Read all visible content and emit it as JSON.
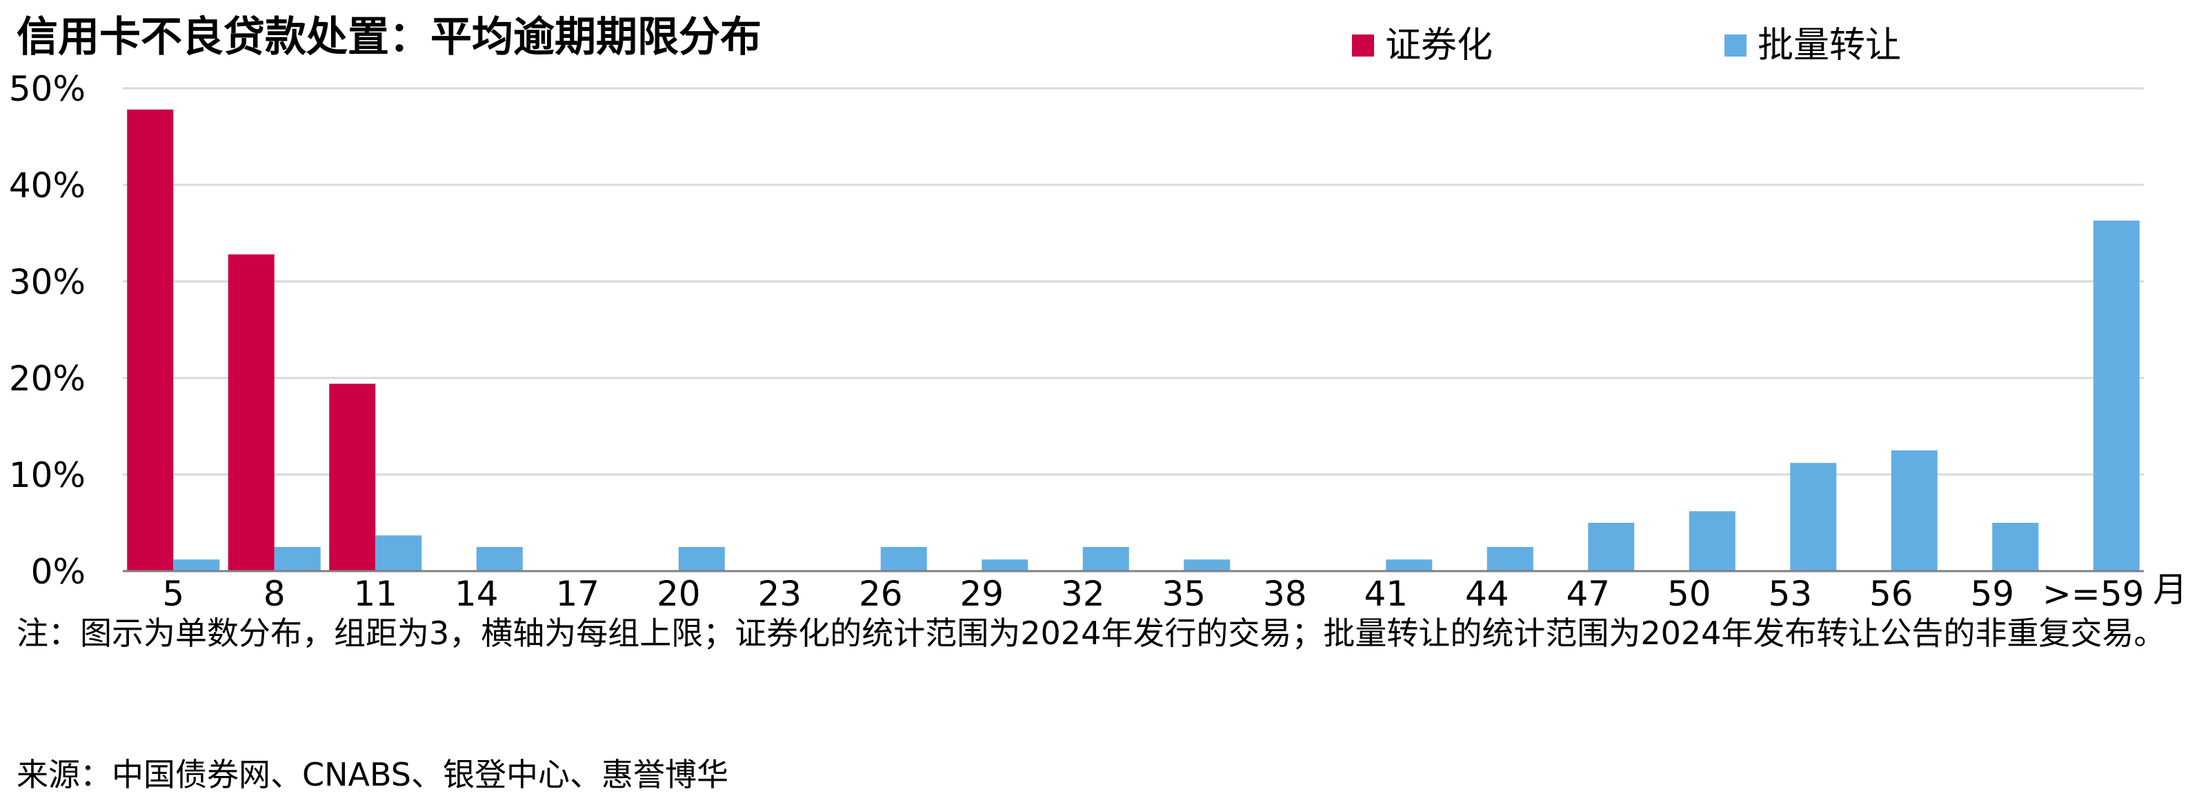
{
  "chart_data": {
    "type": "bar",
    "title": "信用卡不良贷款处置：平均逾期期限分布",
    "xlabel": "月",
    "ylabel": "",
    "ylim": [
      0,
      50
    ],
    "ytick_values": [
      0,
      10,
      20,
      30,
      40,
      50
    ],
    "ytick_labels": [
      "0%",
      "10%",
      "20%",
      "30%",
      "40%",
      "50%"
    ],
    "categories": [
      "5",
      "8",
      "11",
      "14",
      "17",
      "20",
      "23",
      "26",
      "29",
      "32",
      "35",
      "38",
      "41",
      "44",
      "47",
      "50",
      "53",
      "56",
      "59",
      ">=59"
    ],
    "series": [
      {
        "name": "证券化",
        "color": "#CC0044",
        "values": [
          47.8,
          32.8,
          19.4,
          0,
          0,
          0,
          0,
          0,
          0,
          0,
          0,
          0,
          0,
          0,
          0,
          0,
          0,
          0,
          0,
          0
        ]
      },
      {
        "name": "批量转让",
        "color": "#62AEE3",
        "values": [
          1.2,
          2.5,
          3.7,
          2.5,
          0,
          2.5,
          0,
          2.5,
          1.2,
          2.5,
          1.2,
          0,
          1.2,
          2.5,
          5.0,
          6.2,
          11.2,
          12.5,
          5.0,
          36.3
        ]
      }
    ],
    "grid": true,
    "legend_position": "top-right"
  },
  "note": "注：图示为单数分布，组距为3，横轴为每组上限；证券化的统计范围为2024年发行的交易；批量转让的统计范围为2024年发布转让公告的非重复交易。",
  "source": "来源：中国债券网、CNABS、银登中心、惠誉博华",
  "colors": {
    "gridline": "#D9D9D9",
    "axis": "#808080"
  }
}
